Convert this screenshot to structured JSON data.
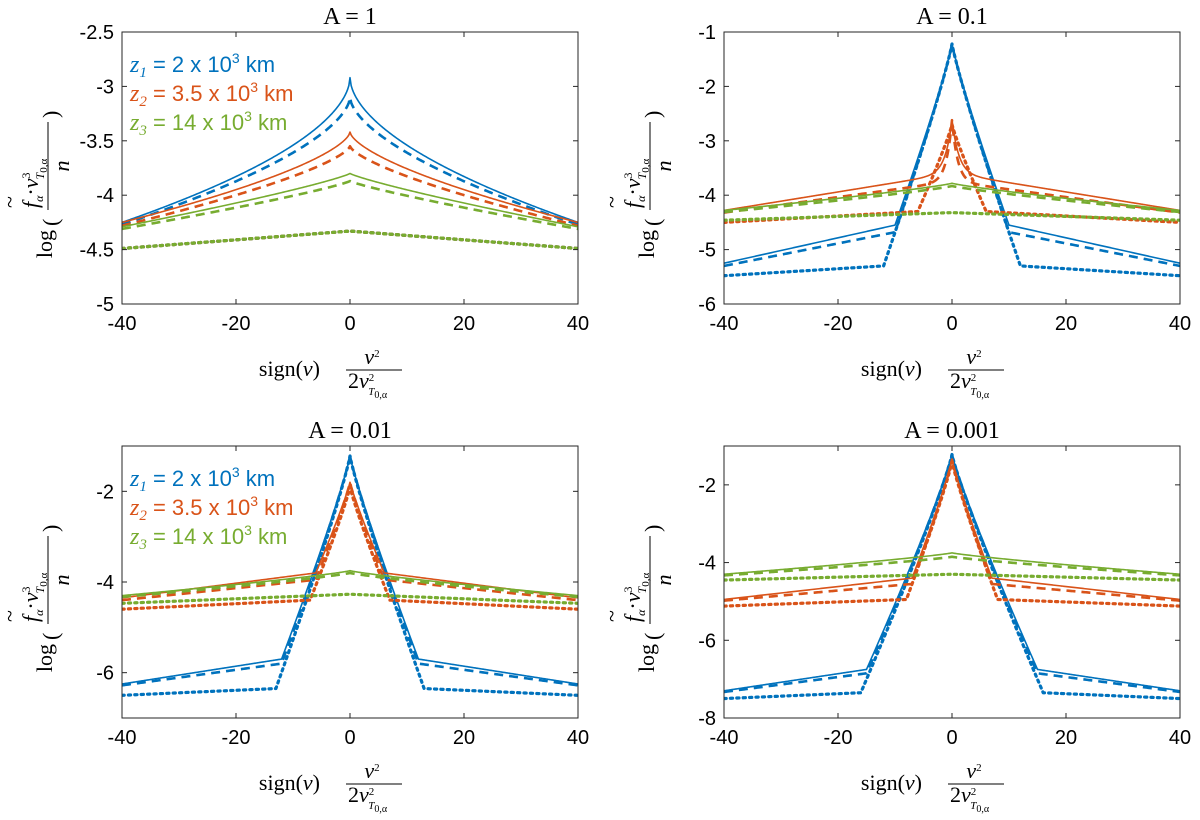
{
  "colors": {
    "z1": "#0072BD",
    "z2": "#D95319",
    "z3": "#77AC30"
  },
  "legend": {
    "entries": [
      {
        "series": "z1",
        "sym": "z",
        "sub": "1",
        "eq": " =    2 x 10",
        "sup": "3",
        "unit": " km",
        "color": "#0072BD"
      },
      {
        "series": "z2",
        "sym": "z",
        "sub": "2",
        "eq": " = 3.5 x 10",
        "sup": "3",
        "unit": " km",
        "color": "#D95319"
      },
      {
        "series": "z3",
        "sym": "z",
        "sub": "3",
        "eq": " =  14 x 10",
        "sup": "3",
        "unit": " km",
        "color": "#77AC30"
      }
    ]
  },
  "xlabel": {
    "sign": "sign(",
    "v": "v",
    "close": ")",
    "num": "v",
    "num_sup": "2",
    "den_pre": "2",
    "den": "v",
    "den_sup": "2",
    "den_sub": "T",
    "den_sub2": "0,α"
  },
  "ylabel": {
    "log": "log",
    "f": "f",
    "f_sub": "α",
    "dot": "·",
    "v": "v",
    "v_sup": "3",
    "v_sub": "T",
    "v_sub2": "0,α",
    "den": "n"
  },
  "chart_data": [
    {
      "type": "line",
      "title": "A = 1",
      "show_legend": true,
      "xlim": [
        -40,
        40
      ],
      "ylim": [
        -5,
        -2.5
      ],
      "xticks": [
        -40,
        -20,
        0,
        20,
        40
      ],
      "yticks": [
        -5,
        -4.5,
        -4,
        -3.5,
        -3,
        -2.5
      ],
      "yticklabels": [
        "-5",
        "-4.5",
        "-4",
        "-3.5",
        "-3",
        "-2.5"
      ],
      "series": [
        {
          "ref": "z1",
          "style": "solid",
          "peak": -2.92,
          "edge": -4.25,
          "p": 0.55
        },
        {
          "ref": "z1",
          "style": "dashed",
          "peak": -3.1,
          "edge": -4.27,
          "p": 0.6
        },
        {
          "ref": "z1",
          "style": "dotted",
          "peak": -4.33,
          "edge": -4.49,
          "p": 1.0
        },
        {
          "ref": "z2",
          "style": "solid",
          "peak": -3.42,
          "edge": -4.25,
          "p": 0.65
        },
        {
          "ref": "z2",
          "style": "dashed",
          "peak": -3.55,
          "edge": -4.28,
          "p": 0.7
        },
        {
          "ref": "z2",
          "style": "dotted",
          "peak": -4.33,
          "edge": -4.49,
          "p": 1.0
        },
        {
          "ref": "z3",
          "style": "solid",
          "peak": -3.8,
          "edge": -4.29,
          "p": 0.85
        },
        {
          "ref": "z3",
          "style": "dashed",
          "peak": -3.87,
          "edge": -4.31,
          "p": 0.85
        },
        {
          "ref": "z3",
          "style": "dotted",
          "peak": -4.33,
          "edge": -4.49,
          "p": 1.0
        }
      ]
    },
    {
      "type": "line",
      "title": "A = 0.1",
      "show_legend": false,
      "xlim": [
        -40,
        40
      ],
      "ylim": [
        -6,
        -1
      ],
      "xticks": [
        -40,
        -20,
        0,
        20,
        40
      ],
      "yticks": [
        -6,
        -5,
        -4,
        -3,
        -2,
        -1
      ],
      "yticklabels": [
        "-6",
        "-5",
        "-4",
        "-3",
        "-2",
        "-1"
      ],
      "series": [
        {
          "ref": "z1",
          "style": "solid",
          "kind": "peaked",
          "peak": -1.22,
          "knee_x": 10,
          "knee_y": -4.55,
          "edge": -5.25
        },
        {
          "ref": "z1",
          "style": "dashed",
          "kind": "peaked",
          "peak": -1.22,
          "knee_x": 10,
          "knee_y": -4.68,
          "edge": -5.3
        },
        {
          "ref": "z1",
          "style": "dotted",
          "kind": "peaked",
          "peak": -1.22,
          "knee_x": 12,
          "knee_y": -5.3,
          "edge": -5.48
        },
        {
          "ref": "z2",
          "style": "solid",
          "kind": "cusp",
          "peak": -2.62,
          "base": -3.6,
          "w": 1.2,
          "edge": -4.28
        },
        {
          "ref": "z2",
          "style": "dashed",
          "kind": "cusp",
          "peak": -2.62,
          "base": -3.75,
          "w": 1.0,
          "edge": -4.32
        },
        {
          "ref": "z2",
          "style": "dotted",
          "kind": "peaked",
          "peak": -2.7,
          "knee_x": 6,
          "knee_y": -4.3,
          "edge": -4.5
        },
        {
          "ref": "z3",
          "style": "solid",
          "peak": -3.78,
          "edge": -4.28,
          "p": 0.85
        },
        {
          "ref": "z3",
          "style": "dashed",
          "peak": -3.83,
          "edge": -4.31,
          "p": 0.85
        },
        {
          "ref": "z3",
          "style": "dotted",
          "peak": -4.32,
          "edge": -4.46,
          "p": 1.0
        }
      ]
    },
    {
      "type": "line",
      "title": "A = 0.01",
      "show_legend": true,
      "xlim": [
        -40,
        40
      ],
      "ylim": [
        -7,
        -1
      ],
      "xticks": [
        -40,
        -20,
        0,
        20,
        40
      ],
      "yticks": [
        -6,
        -4,
        -2
      ],
      "yticklabels": [
        "-6",
        "-4",
        "-2"
      ],
      "series": [
        {
          "ref": "z1",
          "style": "solid",
          "kind": "peaked",
          "peak": -1.22,
          "knee_x": 12,
          "knee_y": -5.7,
          "edge": -6.25
        },
        {
          "ref": "z1",
          "style": "dashed",
          "kind": "peaked",
          "peak": -1.22,
          "knee_x": 12,
          "knee_y": -5.8,
          "edge": -6.28
        },
        {
          "ref": "z1",
          "style": "dotted",
          "kind": "peaked",
          "peak": -1.22,
          "knee_x": 13,
          "knee_y": -6.35,
          "edge": -6.5
        },
        {
          "ref": "z2",
          "style": "solid",
          "kind": "peaked",
          "peak": -1.8,
          "knee_x": 6,
          "knee_y": -3.8,
          "edge": -4.35
        },
        {
          "ref": "z2",
          "style": "dashed",
          "kind": "peaked",
          "peak": -1.8,
          "knee_x": 6,
          "knee_y": -3.95,
          "edge": -4.4
        },
        {
          "ref": "z2",
          "style": "dotted",
          "kind": "peaked",
          "peak": -1.9,
          "knee_x": 7,
          "knee_y": -4.4,
          "edge": -4.6
        },
        {
          "ref": "z3",
          "style": "solid",
          "peak": -3.75,
          "edge": -4.3,
          "p": 0.85
        },
        {
          "ref": "z3",
          "style": "dashed",
          "peak": -3.8,
          "edge": -4.33,
          "p": 0.85
        },
        {
          "ref": "z3",
          "style": "dotted",
          "peak": -4.27,
          "edge": -4.47,
          "p": 1.0
        }
      ]
    },
    {
      "type": "line",
      "title": "A = 0.001",
      "show_legend": false,
      "xlim": [
        -40,
        40
      ],
      "ylim": [
        -8,
        -1
      ],
      "xticks": [
        -40,
        -20,
        0,
        20,
        40
      ],
      "yticks": [
        -8,
        -6,
        -4,
        -2
      ],
      "yticklabels": [
        "-8",
        "-6",
        "-4",
        "-2"
      ],
      "series": [
        {
          "ref": "z1",
          "style": "solid",
          "kind": "peaked",
          "peak": -1.22,
          "knee_x": 15,
          "knee_y": -6.75,
          "edge": -7.3
        },
        {
          "ref": "z1",
          "style": "dashed",
          "kind": "peaked",
          "peak": -1.22,
          "knee_x": 15,
          "knee_y": -6.85,
          "edge": -7.33
        },
        {
          "ref": "z1",
          "style": "dotted",
          "kind": "peaked",
          "peak": -1.22,
          "knee_x": 16,
          "knee_y": -7.35,
          "edge": -7.5
        },
        {
          "ref": "z2",
          "style": "solid",
          "kind": "peaked",
          "peak": -1.35,
          "knee_x": 7,
          "knee_y": -4.4,
          "edge": -4.95
        },
        {
          "ref": "z2",
          "style": "dashed",
          "kind": "peaked",
          "peak": -1.35,
          "knee_x": 7,
          "knee_y": -4.55,
          "edge": -4.98
        },
        {
          "ref": "z2",
          "style": "dotted",
          "kind": "peaked",
          "peak": -1.4,
          "knee_x": 8,
          "knee_y": -4.95,
          "edge": -5.12
        },
        {
          "ref": "z3",
          "style": "solid",
          "peak": -3.75,
          "edge": -4.3,
          "p": 0.85
        },
        {
          "ref": "z3",
          "style": "dashed",
          "peak": -3.85,
          "edge": -4.33,
          "p": 0.85
        },
        {
          "ref": "z3",
          "style": "dotted",
          "peak": -4.3,
          "edge": -4.45,
          "p": 1.0
        }
      ]
    }
  ]
}
